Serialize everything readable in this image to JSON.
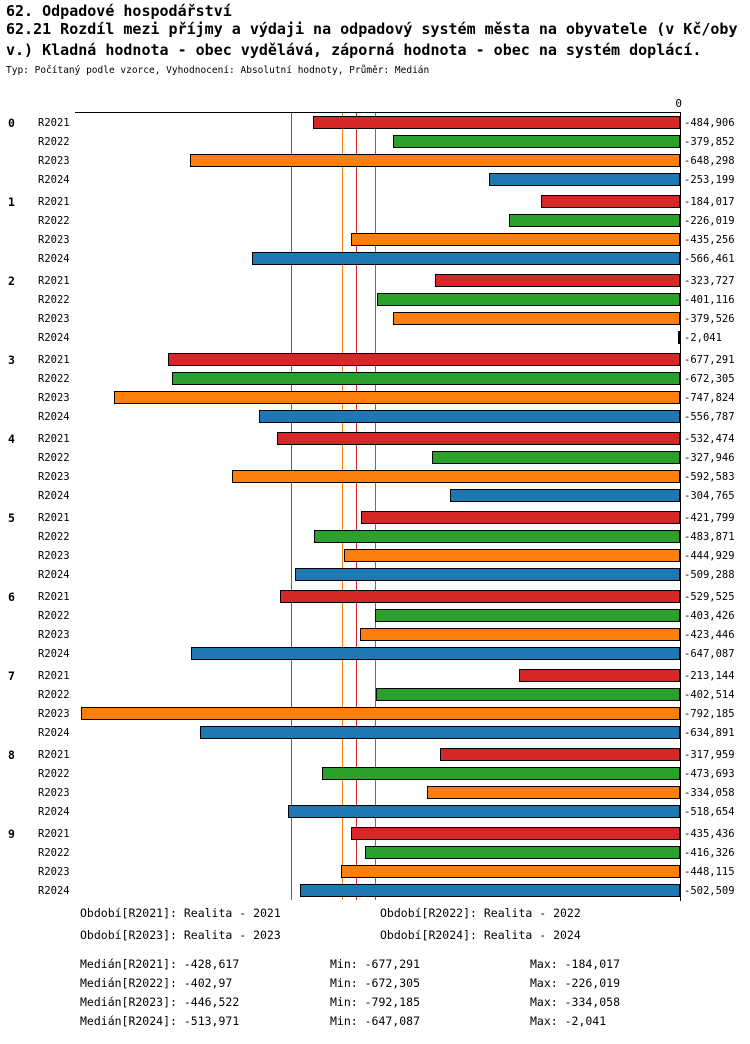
{
  "header": {
    "title": "62. Odpadové hospodářství",
    "subtitle_line1": "62.21 Rozdíl mezi příjmy a výdaji na odpadový systém města na obyvatele (v Kč/oby",
    "subtitle_line2": "v.) Kladná hodnota - obec vydělává, záporná hodnota - obec na systém doplácí.",
    "meta": "Typ: Počítaný podle vzorce, Vyhodnocení: Absolutní hodnoty, Průměr: Medián"
  },
  "chart_data": {
    "type": "bar",
    "orientation": "horizontal",
    "xlim": [
      -800,
      0
    ],
    "zero_tick": "0",
    "grid": false,
    "categories": [
      "0",
      "1",
      "2",
      "3",
      "4",
      "5",
      "6",
      "7",
      "8",
      "9"
    ],
    "series": [
      {
        "name": "R2021",
        "color": "#d62728",
        "values": [
          -484.906,
          -184.017,
          -323.727,
          -677.291,
          -532.474,
          -421.799,
          -529.525,
          -213.144,
          -317.959,
          -435.436
        ],
        "labels": [
          "-484,906",
          "-184,017",
          "-323,727",
          "-677,291",
          "-532,474",
          "-421,799",
          "-529,525",
          "-213,144",
          "-317,959",
          "-435,436"
        ],
        "median": -428.617
      },
      {
        "name": "R2022",
        "color": "#2ca02c",
        "values": [
          -379.852,
          -226.019,
          -401.116,
          -672.305,
          -327.946,
          -483.871,
          -403.426,
          -402.514,
          -473.693,
          -416.326
        ],
        "labels": [
          "-379,852",
          "-226,019",
          "-401,116",
          "-672,305",
          "-327,946",
          "-483,871",
          "-403,426",
          "-402,514",
          "-473,693",
          "-416,326"
        ],
        "median": -402.97
      },
      {
        "name": "R2023",
        "color": "#ff7f0e",
        "values": [
          -648.298,
          -435.256,
          -379.526,
          -747.824,
          -592.583,
          -444.929,
          -423.446,
          -792.185,
          -334.058,
          -448.115
        ],
        "labels": [
          "-648,298",
          "-435,256",
          "-379,526",
          "-747,824",
          "-592,583",
          "-444,929",
          "-423,446",
          "-792,185",
          "-334,058",
          "-448,115"
        ],
        "median": -446.522
      },
      {
        "name": "R2024",
        "color": "#1f77b4",
        "values": [
          -253.199,
          -566.461,
          -2.041,
          -556.787,
          -304.765,
          -509.288,
          -647.087,
          -634.891,
          -518.654,
          -502.509
        ],
        "labels": [
          "-253,199",
          "-566,461",
          "-2,041",
          "-556,787",
          "-304,765",
          "-509,288",
          "-647,087",
          "-634,891",
          "-518,654",
          "-502,509"
        ],
        "median": -513.971
      }
    ]
  },
  "legend": {
    "items": [
      {
        "text": "Období[R2021]: Realita - 2021"
      },
      {
        "text": "Období[R2022]: Realita - 2022"
      },
      {
        "text": "Období[R2023]: Realita - 2023"
      },
      {
        "text": "Období[R2024]: Realita - 2024"
      }
    ]
  },
  "stats": {
    "rows": [
      {
        "median": "Medián[R2021]: -428,617",
        "min": "Min: -677,291",
        "max": "Max: -184,017"
      },
      {
        "median": "Medián[R2022]: -402,97",
        "min": "Min: -672,305",
        "max": "Max: -226,019"
      },
      {
        "median": "Medián[R2023]: -446,522",
        "min": "Min: -792,185",
        "max": "Max: -334,058"
      },
      {
        "median": "Medián[R2024]: -513,971",
        "min": "Min: -647,087",
        "max": "Max: -2,041"
      }
    ]
  }
}
